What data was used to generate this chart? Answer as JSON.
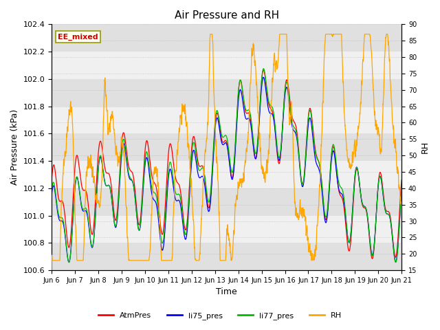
{
  "title": "Air Pressure and RH",
  "xlabel": "Time",
  "ylabel_left": "Air Pressure (kPa)",
  "ylabel_right": "RH",
  "ylim_left": [
    100.6,
    102.4
  ],
  "ylim_right": [
    15,
    90
  ],
  "yticks_left": [
    100.6,
    100.8,
    101.0,
    101.2,
    101.4,
    101.6,
    101.8,
    102.0,
    102.2,
    102.4
  ],
  "yticks_right": [
    15,
    20,
    25,
    30,
    35,
    40,
    45,
    50,
    55,
    60,
    65,
    70,
    75,
    80,
    85,
    90
  ],
  "xtick_labels": [
    "Jun 6",
    "Jun 7",
    "Jun 8",
    "Jun 9",
    "Jun 10",
    "Jun 11",
    "Jun 12",
    "Jun 13",
    "Jun 14",
    "Jun 15",
    "Jun 16",
    "Jun 17",
    "Jun 18",
    "Jun 19",
    "Jun 20",
    "Jun 21"
  ],
  "legend_labels": [
    "AtmPres",
    "li75_pres",
    "li77_pres",
    "RH"
  ],
  "legend_colors": [
    "#ff0000",
    "#0000ff",
    "#00bb00",
    "#ffa500"
  ],
  "annotation_text": "EE_mixed",
  "annotation_box_facecolor": "#fffff0",
  "annotation_box_edgecolor": "#999900",
  "annotation_fontcolor": "#cc0000",
  "band_colors": [
    "#e0e0e0",
    "#f0f0f0"
  ],
  "band_boundaries": [
    100.6,
    100.8,
    101.0,
    101.2,
    101.4,
    101.6,
    101.8,
    102.0,
    102.2,
    102.4
  ],
  "figsize": [
    6.4,
    4.8
  ],
  "dpi": 100
}
